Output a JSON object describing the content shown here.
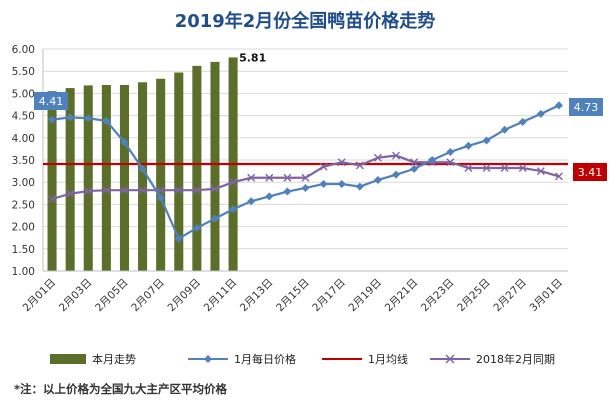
{
  "note": "*注：以上价格为全国九大主产区平均价格",
  "chart_data": {
    "type": "bar+line",
    "title": "2019年2月份全国鸭苗价格走势",
    "ylim": [
      1.0,
      6.0
    ],
    "yticks": [
      "1.00",
      "1.50",
      "2.00",
      "2.50",
      "3.00",
      "3.50",
      "4.00",
      "4.50",
      "5.00",
      "5.50",
      "6.00"
    ],
    "xticks": [
      "2月01日",
      "2月03日",
      "2月05日",
      "2月07日",
      "2月09日",
      "2月11日",
      "2月13日",
      "2月15日",
      "2月17日",
      "2月19日",
      "2月21日",
      "2月23日",
      "2月25日",
      "2月27日",
      "3月01日"
    ],
    "n_points": 29,
    "grid": true,
    "legend_position": "bottom",
    "colors": {
      "bar": "#5b6f2a",
      "daily": "#4f81bd",
      "avg": "#c00000",
      "lastyear": "#8064a2"
    },
    "series": [
      {
        "name": "本月走势",
        "kind": "bar",
        "values": [
          5.05,
          5.12,
          5.18,
          5.19,
          5.19,
          5.25,
          5.33,
          5.47,
          5.62,
          5.71,
          5.81
        ]
      },
      {
        "name": "1月每日价格",
        "kind": "line",
        "values": [
          4.41,
          4.46,
          4.44,
          4.38,
          3.9,
          3.3,
          2.65,
          1.73,
          1.97,
          2.18,
          2.39,
          2.57,
          2.68,
          2.79,
          2.87,
          2.96,
          2.96,
          2.9,
          3.05,
          3.17,
          3.3,
          3.5,
          3.68,
          3.82,
          3.94,
          4.18,
          4.36,
          4.54,
          4.73
        ]
      },
      {
        "name": "1月均线",
        "kind": "hline",
        "value": 3.41
      },
      {
        "name": "2018年2月同期",
        "kind": "line",
        "values": [
          2.62,
          2.74,
          2.8,
          2.82,
          2.82,
          2.82,
          2.82,
          2.82,
          2.82,
          2.85,
          3.0,
          3.1,
          3.1,
          3.1,
          3.1,
          3.35,
          3.45,
          3.38,
          3.55,
          3.6,
          3.45,
          3.45,
          3.45,
          3.32,
          3.32,
          3.32,
          3.32,
          3.25,
          3.13
        ]
      }
    ],
    "labels": {
      "bar_last": "5.81",
      "daily_first": "4.41",
      "daily_last": "4.73",
      "avg": "3.41"
    }
  }
}
